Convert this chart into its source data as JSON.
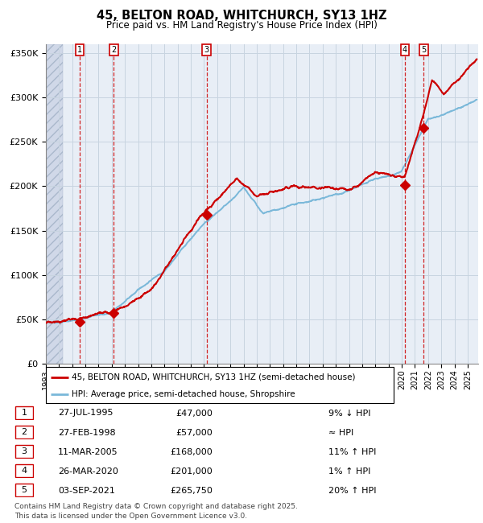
{
  "title": "45, BELTON ROAD, WHITCHURCH, SY13 1HZ",
  "subtitle": "Price paid vs. HM Land Registry's House Price Index (HPI)",
  "transactions": [
    {
      "num": 1,
      "date": "27-JUL-1995",
      "year": 1995.57,
      "price": 47000,
      "hpi_rel": "9% ↓ HPI"
    },
    {
      "num": 2,
      "date": "27-FEB-1998",
      "year": 1998.16,
      "price": 57000,
      "hpi_rel": "≈ HPI"
    },
    {
      "num": 3,
      "date": "11-MAR-2005",
      "year": 2005.19,
      "price": 168000,
      "hpi_rel": "11% ↑ HPI"
    },
    {
      "num": 4,
      "date": "26-MAR-2020",
      "year": 2020.23,
      "price": 201000,
      "hpi_rel": "1% ↑ HPI"
    },
    {
      "num": 5,
      "date": "03-SEP-2021",
      "year": 2021.67,
      "price": 265750,
      "hpi_rel": "20% ↑ HPI"
    }
  ],
  "legend_line1": "45, BELTON ROAD, WHITCHURCH, SY13 1HZ (semi-detached house)",
  "legend_line2": "HPI: Average price, semi-detached house, Shropshire",
  "footer": "Contains HM Land Registry data © Crown copyright and database right 2025.\nThis data is licensed under the Open Government Licence v3.0.",
  "hpi_color": "#7ab8d9",
  "price_color": "#cc0000",
  "marker_color": "#cc0000",
  "dashed_color": "#cc0000",
  "grid_color": "#c8d4e0",
  "chart_bg": "#e8eef6",
  "ylim": [
    0,
    360000
  ],
  "xlim_start": 1993.0,
  "xlim_end": 2025.8
}
